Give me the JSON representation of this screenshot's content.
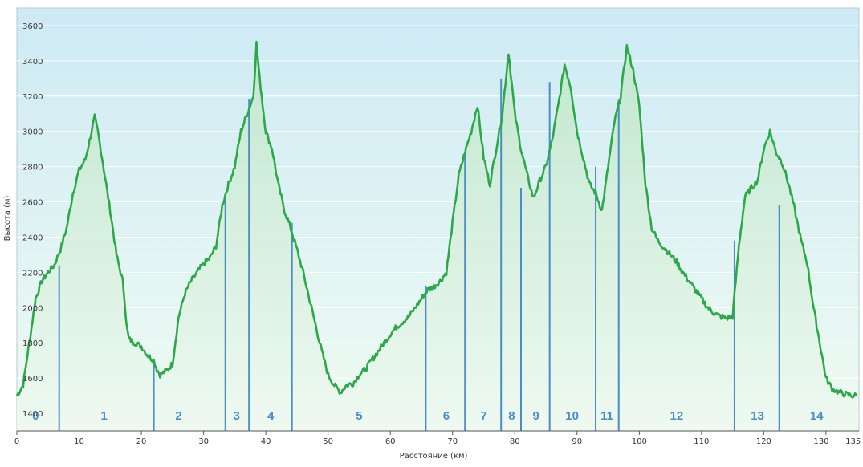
{
  "chart_data": {
    "type": "area",
    "title": "",
    "xlabel": "Расстояние  (км)",
    "ylabel": "Высота (м)",
    "xlim": [
      0,
      135
    ],
    "ylim": [
      1300,
      3700
    ],
    "x_ticks": [
      0,
      10,
      20,
      30,
      40,
      50,
      60,
      70,
      80,
      90,
      100,
      110,
      120,
      130,
      135
    ],
    "y_ticks": [
      1400,
      1600,
      1800,
      2000,
      2200,
      2400,
      2600,
      2800,
      3000,
      3200,
      3400,
      3600
    ],
    "grid": "horizontal",
    "colors": {
      "line": "#2ca84a",
      "fill_top": "#bfe6c9",
      "fill_bottom": "#eef9f1",
      "bg_top": "#cdeaf5",
      "bg_bottom": "#f0fbf2",
      "marker": "#4a8ec4",
      "grid": "#ffffff"
    },
    "series": [
      {
        "x": [
          0,
          1,
          2,
          3,
          4,
          5,
          6,
          7,
          8,
          9,
          10,
          11,
          12,
          12.5,
          13,
          14,
          15,
          16,
          17,
          17.3,
          17.6,
          18,
          19,
          20,
          21,
          22,
          22.5,
          23,
          24,
          25,
          26,
          27,
          28,
          29,
          30,
          31,
          32,
          33,
          34,
          35,
          36,
          37,
          38,
          38.5,
          39,
          40,
          41,
          42,
          43,
          44,
          45,
          46,
          47,
          48,
          49,
          50,
          51,
          52,
          53,
          54,
          55,
          56,
          57,
          58,
          59,
          60,
          61,
          62,
          63,
          64,
          65,
          66,
          67,
          68,
          69,
          70,
          71,
          72,
          73,
          74,
          75,
          76,
          77,
          78,
          79,
          80,
          81,
          82,
          83,
          84,
          85,
          86,
          87,
          88,
          89,
          90,
          91,
          92,
          93,
          94,
          95,
          96,
          97,
          98,
          99,
          100,
          101,
          102,
          103,
          104,
          105,
          106,
          107,
          108,
          109,
          110,
          111,
          112,
          113,
          114,
          115,
          116,
          117,
          118,
          119,
          120,
          121,
          122,
          123,
          124,
          125,
          126,
          127,
          128,
          129,
          130,
          131,
          132,
          133,
          134,
          135
        ],
        "y": [
          1500,
          1560,
          1800,
          2050,
          2150,
          2200,
          2240,
          2330,
          2450,
          2650,
          2780,
          2840,
          3000,
          3080,
          3000,
          2780,
          2550,
          2300,
          2150,
          2050,
          1900,
          1820,
          1800,
          1780,
          1730,
          1700,
          1650,
          1620,
          1640,
          1680,
          1950,
          2080,
          2150,
          2200,
          2250,
          2280,
          2350,
          2580,
          2700,
          2800,
          3000,
          3100,
          3200,
          3500,
          3300,
          3000,
          2900,
          2700,
          2550,
          2450,
          2330,
          2200,
          2050,
          1900,
          1750,
          1620,
          1560,
          1520,
          1560,
          1570,
          1620,
          1650,
          1700,
          1750,
          1800,
          1850,
          1890,
          1920,
          1950,
          2000,
          2050,
          2100,
          2120,
          2150,
          2200,
          2480,
          2750,
          2880,
          3000,
          3150,
          2850,
          2700,
          2900,
          3100,
          3450,
          3100,
          2900,
          2750,
          2620,
          2720,
          2800,
          2950,
          3150,
          3380,
          3250,
          3000,
          2850,
          2700,
          2650,
          2550,
          2800,
          3050,
          3200,
          3480,
          3350,
          3150,
          2700,
          2450,
          2380,
          2340,
          2300,
          2260,
          2200,
          2150,
          2100,
          2050,
          2000,
          1970,
          1950,
          1940,
          1950,
          2350,
          2630,
          2680,
          2720,
          2900,
          3000,
          2880,
          2820,
          2700,
          2550,
          2380,
          2250,
          2000,
          1800,
          1600,
          1540,
          1520,
          1510,
          1500,
          1500
        ]
      }
    ],
    "checkpoints": [
      {
        "label": "0",
        "x": null,
        "label_x": 3
      },
      {
        "label": "1",
        "x": 6.8,
        "label_x": 14
      },
      {
        "label": "2",
        "x": 22,
        "label_x": 26
      },
      {
        "label": "3",
        "x": 33.5,
        "label_x": 35.3
      },
      {
        "label": "4",
        "x": 37.3,
        "label_x": 40.8
      },
      {
        "label": "5",
        "x": 44.2,
        "label_x": 55
      },
      {
        "label": "6",
        "x": 65.7,
        "label_x": 69
      },
      {
        "label": "7",
        "x": 72,
        "label_x": 75
      },
      {
        "label": "8",
        "x": 77.8,
        "label_x": 79.5
      },
      {
        "label": "9",
        "x": 81,
        "label_x": 83.4
      },
      {
        "label": "10",
        "x": 85.6,
        "label_x": 89.2
      },
      {
        "label": "11",
        "x": 93,
        "label_x": 94.8
      },
      {
        "label": "12",
        "x": 96.7,
        "label_x": 106
      },
      {
        "label": "13",
        "x": 115.3,
        "label_x": 119
      },
      {
        "label": "14",
        "x": 122.5,
        "label_x": 128.5
      }
    ],
    "checkpoint_elevations": [
      null,
      2240,
      1700,
      2620,
      3180,
      2480,
      2120,
      2880,
      3300,
      2680,
      3280,
      2800,
      3180,
      2380,
      2580
    ]
  }
}
